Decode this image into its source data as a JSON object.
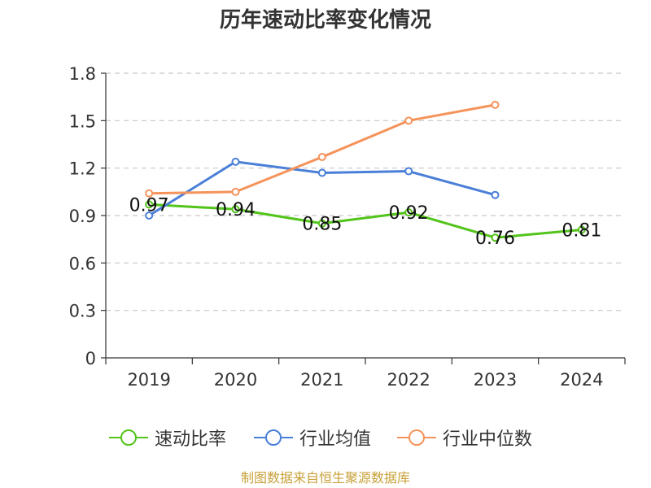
{
  "chart_data": {
    "type": "line",
    "title": "历年速动比率变化情况",
    "categories": [
      "2019",
      "2020",
      "2021",
      "2022",
      "2023",
      "2024"
    ],
    "y_ticks": [
      "0",
      "0.3",
      "0.6",
      "0.9",
      "1.2",
      "1.5",
      "1.8"
    ],
    "ylim": [
      0,
      1.8
    ],
    "grid": true,
    "legend_position": "bottom",
    "series": [
      {
        "name": "速动比率",
        "color": "#52c41a",
        "values": [
          0.97,
          0.94,
          0.85,
          0.92,
          0.76,
          0.81
        ],
        "labels": [
          "0.97",
          "0.94",
          "0.85",
          "0.92",
          "0.76",
          "0.81"
        ]
      },
      {
        "name": "行业均值",
        "color": "#4a7fd8",
        "values": [
          0.9,
          1.24,
          1.17,
          1.18,
          1.03,
          null
        ]
      },
      {
        "name": "行业中位数",
        "color": "#f5935a",
        "values": [
          1.04,
          1.05,
          1.27,
          1.5,
          1.6,
          null
        ]
      }
    ]
  },
  "source": "制图数据来自恒生聚源数据库"
}
